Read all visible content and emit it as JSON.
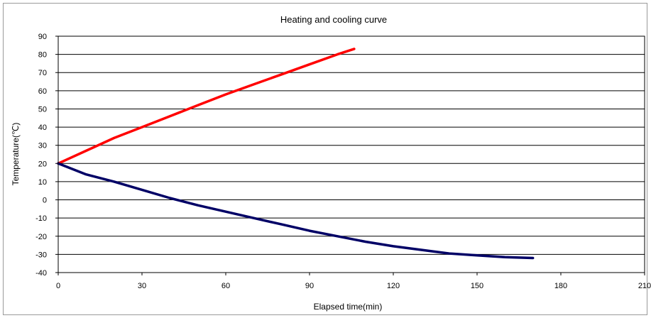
{
  "chart_data": {
    "type": "line",
    "title": "Heating and cooling curve",
    "xlabel": "Elapsed time(min)",
    "ylabel": "Temperature(℃)",
    "xlim": [
      0,
      210
    ],
    "ylim": [
      -40,
      90
    ],
    "x_ticks": [
      0,
      30,
      60,
      90,
      120,
      150,
      180,
      210
    ],
    "y_ticks": [
      90,
      80,
      70,
      60,
      50,
      40,
      30,
      20,
      10,
      0,
      -10,
      -20,
      -30,
      -40
    ],
    "grid": true,
    "legend": "none",
    "series": [
      {
        "color": "#ff0000",
        "x": [
          0,
          10,
          20,
          30,
          40,
          50,
          60,
          70,
          80,
          90,
          100,
          106
        ],
        "y": [
          20,
          27,
          34,
          40,
          46,
          52,
          58,
          63.5,
          69,
          74.5,
          80,
          83
        ]
      },
      {
        "color": "#000066",
        "x": [
          0,
          10,
          20,
          30,
          40,
          50,
          60,
          70,
          80,
          90,
          100,
          110,
          120,
          130,
          140,
          150,
          160,
          170
        ],
        "y": [
          20,
          14,
          10,
          5.5,
          1,
          -3,
          -6.5,
          -10,
          -13.5,
          -17,
          -20,
          -23,
          -25.5,
          -27.5,
          -29.5,
          -30.5,
          -31.5,
          -32
        ]
      }
    ]
  }
}
